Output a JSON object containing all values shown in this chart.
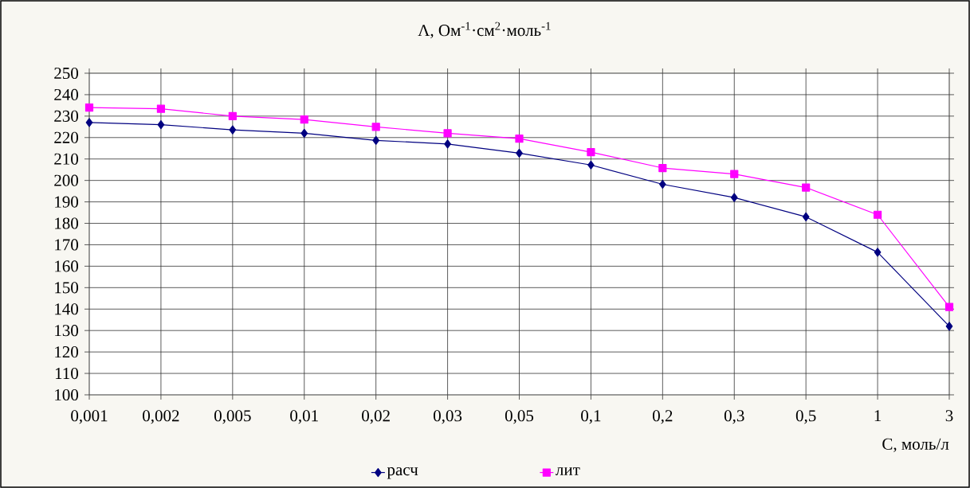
{
  "chart_data": {
    "type": "line",
    "title": "Λ, Ом$^{-1}$·см$^{2}$·моль$^{-1}$",
    "xlabel": "С, моль/л",
    "categories": [
      "0,001",
      "0,002",
      "0,005",
      "0,01",
      "0,02",
      "0,03",
      "0,05",
      "0,1",
      "0,2",
      "0,3",
      "0,5",
      "1",
      "3"
    ],
    "series": [
      {
        "name": "расч",
        "color": "#000080",
        "marker": "diamond",
        "values": [
          227,
          226,
          223.6,
          222,
          218.7,
          217,
          212.7,
          207.2,
          198.2,
          192,
          183,
          166.5,
          132
        ]
      },
      {
        "name": "лит",
        "color": "#ff00ff",
        "marker": "square",
        "values": [
          234,
          233.4,
          230,
          228.4,
          225,
          222,
          219.5,
          213.2,
          205.8,
          203,
          196.7,
          184,
          141
        ]
      }
    ],
    "ylim": [
      100,
      250
    ],
    "yticks": [
      100,
      110,
      120,
      130,
      140,
      150,
      160,
      170,
      180,
      190,
      200,
      210,
      220,
      230,
      240,
      250
    ],
    "grid": true,
    "legend": "bottom"
  }
}
